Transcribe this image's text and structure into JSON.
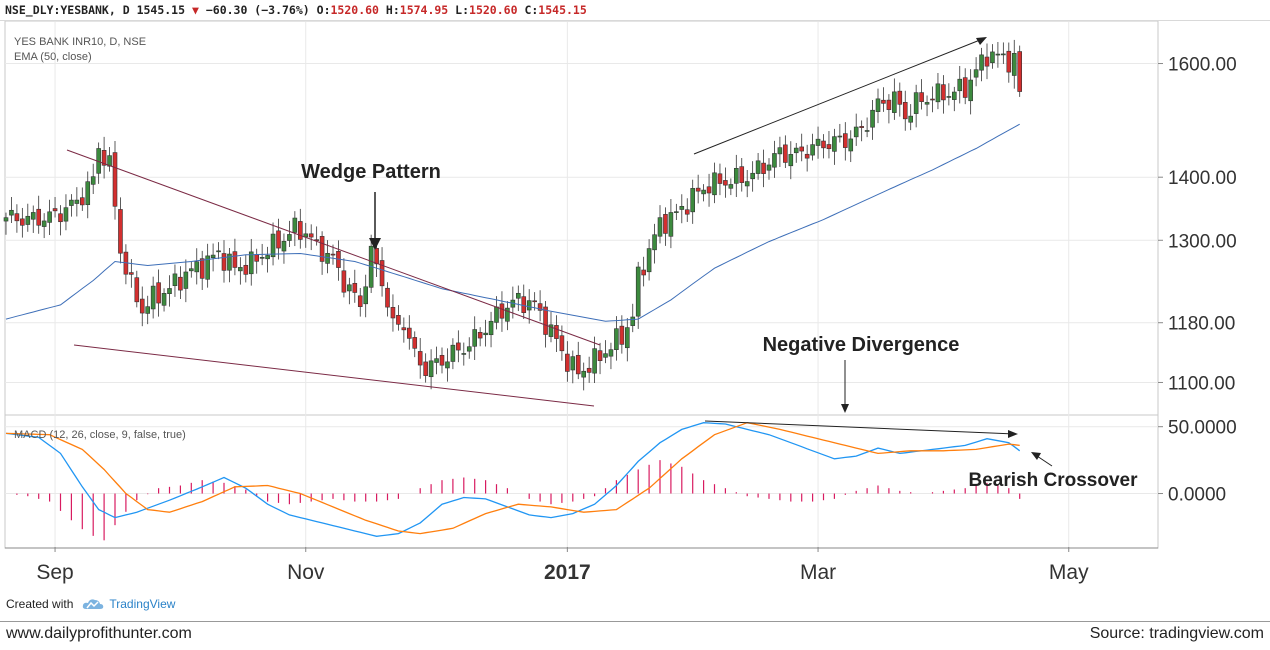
{
  "header": {
    "symbol": "NSE_DLY:YESBANK, D",
    "last": "1545.15",
    "change": "−60.30 (−3.76%)",
    "open_label": "O:",
    "open": "1520.60",
    "high_label": "H:",
    "high": "1574.95",
    "low_label": "L:",
    "low": "1520.60",
    "close_label": "C:",
    "close": "1545.15"
  },
  "legend": {
    "title": "YES BANK INR10, D, NSE",
    "ema": "EMA (50, close)",
    "macd": "MACD (12, 26, close, 9, false, true)"
  },
  "annotations": {
    "wedge": "Wedge Pattern",
    "divergence": "Negative Divergence",
    "crossover": "Bearish Crossover"
  },
  "footer": {
    "created_with": "Created with",
    "brand": "TradingView",
    "site": "www.dailyprofithunter.com",
    "source": "Source: tradingview.com"
  },
  "colors": {
    "up": "#3c8a3e",
    "down": "#d32f2f",
    "ema": "#3e6fb8",
    "macd": "#2196f3",
    "signal": "#ff7f0e",
    "histogram": "#d81b60",
    "trendline": "#7b2a45",
    "arrow": "#222222",
    "grid": "#e9e9e9"
  },
  "chart_data": [
    {
      "type": "candlestick",
      "series": [
        {
          "name": "YES BANK INR10, D, NSE"
        },
        {
          "name": "EMA (50, close)"
        }
      ],
      "x_ticks": [
        "Sep",
        "Nov",
        "2017",
        "Mar",
        "May"
      ],
      "y_ticks": [
        "1100.00",
        "1180.00",
        "1300.00",
        "1400.00",
        "1600.00"
      ],
      "y_scale": "log",
      "ylim": [
        1060,
        1680
      ],
      "price_ticks": [
        1100,
        1180,
        1300,
        1400,
        1600
      ],
      "close_points": [
        [
          0,
          1335
        ],
        [
          5,
          1332
        ],
        [
          9,
          1338
        ],
        [
          13,
          1360
        ],
        [
          16,
          1395
        ],
        [
          17,
          1450
        ],
        [
          19,
          1420
        ],
        [
          21,
          1285
        ],
        [
          23,
          1232
        ],
        [
          25,
          1198
        ],
        [
          27,
          1215
        ],
        [
          30,
          1228
        ],
        [
          33,
          1250
        ],
        [
          36,
          1262
        ],
        [
          39,
          1280
        ],
        [
          42,
          1258
        ],
        [
          45,
          1265
        ],
        [
          48,
          1285
        ],
        [
          51,
          1303
        ],
        [
          53,
          1318
        ],
        [
          55,
          1312
        ],
        [
          57,
          1290
        ],
        [
          60,
          1272
        ],
        [
          62,
          1238
        ],
        [
          65,
          1205
        ],
        [
          67,
          1280
        ],
        [
          69,
          1240
        ],
        [
          71,
          1175
        ],
        [
          73,
          1180
        ],
        [
          75,
          1135
        ],
        [
          77,
          1118
        ],
        [
          79,
          1125
        ],
        [
          82,
          1138
        ],
        [
          85,
          1150
        ],
        [
          88,
          1172
        ],
        [
          91,
          1198
        ],
        [
          94,
          1212
        ],
        [
          97,
          1205
        ],
        [
          99,
          1180
        ],
        [
          101,
          1155
        ],
        [
          103,
          1128
        ],
        [
          105,
          1112
        ],
        [
          108,
          1128
        ],
        [
          111,
          1148
        ],
        [
          113,
          1162
        ],
        [
          115,
          1188
        ],
        [
          116,
          1245
        ],
        [
          118,
          1285
        ],
        [
          120,
          1325
        ],
        [
          123,
          1340
        ],
        [
          126,
          1368
        ],
        [
          129,
          1388
        ],
        [
          133,
          1395
        ],
        [
          136,
          1400
        ],
        [
          139,
          1418
        ],
        [
          142,
          1440
        ],
        [
          145,
          1438
        ],
        [
          148,
          1450
        ],
        [
          151,
          1458
        ],
        [
          154,
          1462
        ],
        [
          157,
          1480
        ],
        [
          160,
          1525
        ],
        [
          163,
          1535
        ],
        [
          165,
          1505
        ],
        [
          167,
          1528
        ],
        [
          170,
          1540
        ],
        [
          173,
          1545
        ],
        [
          176,
          1555
        ],
        [
          178,
          1585
        ],
        [
          180,
          1618
        ],
        [
          183,
          1610
        ],
        [
          185,
          1605
        ],
        [
          186,
          1545
        ]
      ],
      "ema_points": [
        [
          0,
          1185
        ],
        [
          10,
          1205
        ],
        [
          16,
          1240
        ],
        [
          20,
          1268
        ],
        [
          26,
          1262
        ],
        [
          34,
          1268
        ],
        [
          44,
          1278
        ],
        [
          54,
          1280
        ],
        [
          64,
          1268
        ],
        [
          72,
          1248
        ],
        [
          80,
          1228
        ],
        [
          90,
          1212
        ],
        [
          100,
          1196
        ],
        [
          110,
          1182
        ],
        [
          116,
          1185
        ],
        [
          122,
          1212
        ],
        [
          130,
          1258
        ],
        [
          140,
          1298
        ],
        [
          150,
          1332
        ],
        [
          160,
          1372
        ],
        [
          170,
          1412
        ],
        [
          178,
          1448
        ],
        [
          186,
          1490
        ]
      ]
    },
    {
      "type": "line",
      "series": [
        {
          "name": "MACD (12, 26, close, 9, false, true)"
        }
      ],
      "y_ticks": [
        "50.0000",
        "0.0000"
      ],
      "ylim": [
        -40,
        58
      ],
      "macd_points": [
        [
          0,
          45
        ],
        [
          6,
          42
        ],
        [
          10,
          30
        ],
        [
          14,
          5
        ],
        [
          17,
          -12
        ],
        [
          20,
          -18
        ],
        [
          24,
          -14
        ],
        [
          30,
          -5
        ],
        [
          36,
          5
        ],
        [
          40,
          12
        ],
        [
          44,
          4
        ],
        [
          48,
          -8
        ],
        [
          52,
          -16
        ],
        [
          56,
          -20
        ],
        [
          60,
          -24
        ],
        [
          64,
          -28
        ],
        [
          68,
          -32
        ],
        [
          72,
          -30
        ],
        [
          76,
          -22
        ],
        [
          80,
          -8
        ],
        [
          84,
          -3
        ],
        [
          88,
          -4
        ],
        [
          92,
          -10
        ],
        [
          96,
          -16
        ],
        [
          100,
          -18
        ],
        [
          104,
          -15
        ],
        [
          108,
          -8
        ],
        [
          112,
          6
        ],
        [
          116,
          24
        ],
        [
          120,
          38
        ],
        [
          124,
          48
        ],
        [
          128,
          53
        ],
        [
          132,
          52
        ],
        [
          136,
          48
        ],
        [
          140,
          44
        ],
        [
          144,
          38
        ],
        [
          148,
          32
        ],
        [
          152,
          26
        ],
        [
          156,
          28
        ],
        [
          160,
          34
        ],
        [
          164,
          30
        ],
        [
          168,
          32
        ],
        [
          172,
          34
        ],
        [
          176,
          36
        ],
        [
          180,
          41
        ],
        [
          184,
          38
        ],
        [
          186,
          32
        ]
      ],
      "signal_points": [
        [
          0,
          45
        ],
        [
          8,
          44
        ],
        [
          14,
          33
        ],
        [
          18,
          18
        ],
        [
          22,
          0
        ],
        [
          26,
          -12
        ],
        [
          30,
          -14
        ],
        [
          36,
          -6
        ],
        [
          42,
          5
        ],
        [
          48,
          6
        ],
        [
          54,
          0
        ],
        [
          60,
          -10
        ],
        [
          66,
          -20
        ],
        [
          72,
          -28
        ],
        [
          76,
          -30
        ],
        [
          82,
          -26
        ],
        [
          88,
          -15
        ],
        [
          94,
          -8
        ],
        [
          100,
          -10
        ],
        [
          106,
          -14
        ],
        [
          112,
          -12
        ],
        [
          118,
          4
        ],
        [
          124,
          26
        ],
        [
          130,
          44
        ],
        [
          136,
          53
        ],
        [
          142,
          48
        ],
        [
          148,
          42
        ],
        [
          154,
          36
        ],
        [
          160,
          30
        ],
        [
          166,
          32
        ],
        [
          172,
          32
        ],
        [
          178,
          33
        ],
        [
          184,
          37
        ],
        [
          186,
          36
        ]
      ],
      "histogram": [
        [
          0,
          0
        ],
        [
          4,
          -2
        ],
        [
          8,
          -6
        ],
        [
          12,
          -20
        ],
        [
          15,
          -30
        ],
        [
          18,
          -35
        ],
        [
          21,
          -18
        ],
        [
          24,
          -5
        ],
        [
          28,
          4
        ],
        [
          32,
          6
        ],
        [
          36,
          10
        ],
        [
          40,
          8
        ],
        [
          44,
          3
        ],
        [
          48,
          -6
        ],
        [
          52,
          -8
        ],
        [
          56,
          -6
        ],
        [
          60,
          -4
        ],
        [
          64,
          -6
        ],
        [
          68,
          -6
        ],
        [
          72,
          -4
        ],
        [
          76,
          4
        ],
        [
          80,
          10
        ],
        [
          84,
          12
        ],
        [
          88,
          10
        ],
        [
          92,
          4
        ],
        [
          96,
          -4
        ],
        [
          100,
          -8
        ],
        [
          104,
          -6
        ],
        [
          108,
          -2
        ],
        [
          112,
          10
        ],
        [
          116,
          18
        ],
        [
          120,
          25
        ],
        [
          124,
          20
        ],
        [
          128,
          10
        ],
        [
          132,
          4
        ],
        [
          136,
          -2
        ],
        [
          140,
          -4
        ],
        [
          144,
          -6
        ],
        [
          148,
          -6
        ],
        [
          152,
          -4
        ],
        [
          156,
          2
        ],
        [
          160,
          6
        ],
        [
          164,
          2
        ],
        [
          168,
          0
        ],
        [
          172,
          2
        ],
        [
          176,
          4
        ],
        [
          180,
          8
        ],
        [
          184,
          4
        ],
        [
          186,
          -4
        ]
      ]
    }
  ]
}
